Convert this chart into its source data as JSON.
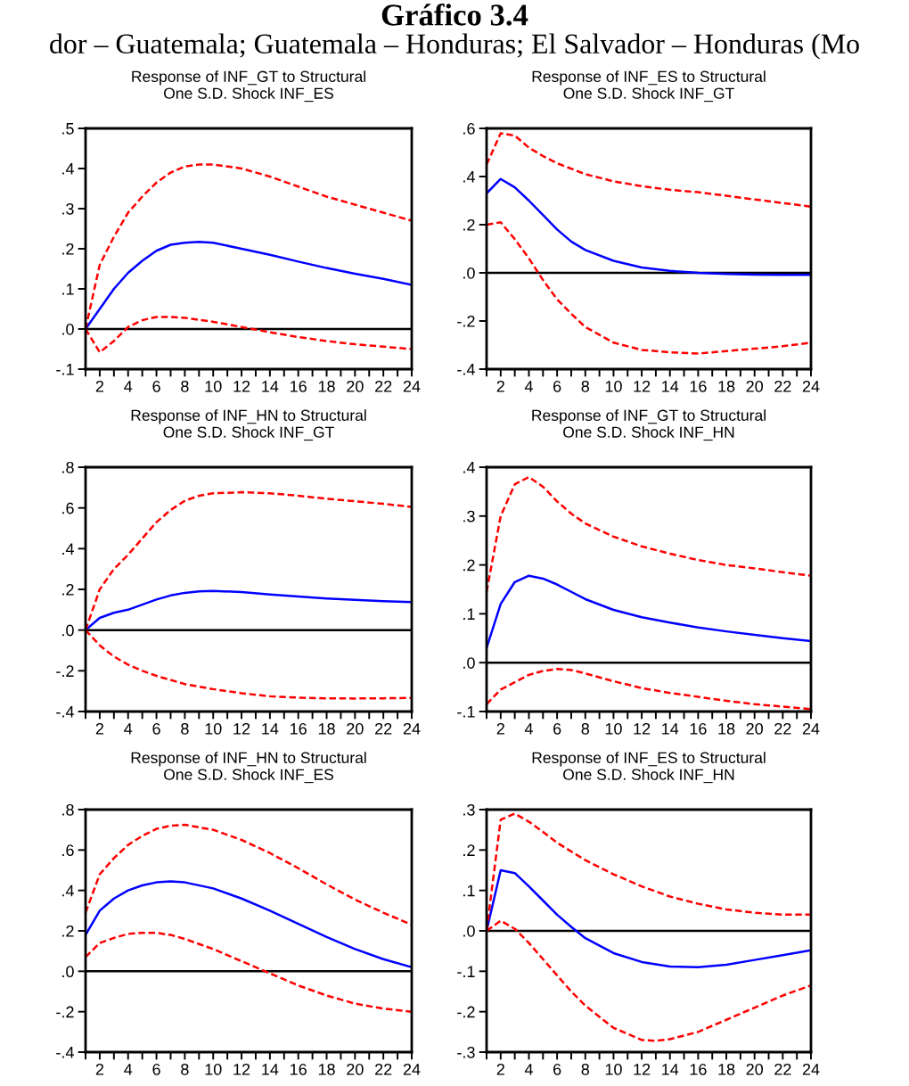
{
  "chart_data": [
    {
      "type": "line",
      "title": "Response of INF_GT to Structural\nOne S.D. Shock INF_ES",
      "annotations": [
        "Gráfico 3.4",
        "dor – Guatemala; Guatemala – Honduras; El Salvador – Honduras (Mo"
      ],
      "xlim": [
        1,
        24
      ],
      "xticks": [
        {
          "value": 1,
          "label": null
        },
        2,
        {
          "value": 3,
          "label": null
        },
        4,
        {
          "value": 5,
          "label": null
        },
        6,
        {
          "value": 7,
          "label": null
        },
        8,
        {
          "value": 9,
          "label": null
        },
        10,
        {
          "value": 11,
          "label": null
        },
        12,
        {
          "value": 13,
          "label": null
        },
        14,
        {
          "value": 15,
          "label": null
        },
        16,
        {
          "value": 17,
          "label": null
        },
        18,
        {
          "value": 19,
          "label": null
        },
        20,
        {
          "value": 21,
          "label": null
        },
        22,
        {
          "value": 23,
          "label": null
        },
        24
      ],
      "ylim": [
        -0.1,
        0.5
      ],
      "yticks": [
        {
          "value": -0.1,
          "label": "-.1"
        },
        {
          "value": 0,
          "label": ".0"
        },
        {
          "value": 0.1,
          "label": ".1"
        },
        {
          "value": 0.2,
          "label": ".2"
        },
        {
          "value": 0.3,
          "label": ".3"
        },
        {
          "value": 0.4,
          "label": ".4"
        },
        {
          "value": 0.5,
          "label": ".5"
        }
      ],
      "grid": false,
      "ref_lines": [
        {
          "axis": "y",
          "value": 0,
          "color": "#000000"
        }
      ],
      "series": [
        {
          "color": "#0000ff",
          "line_style": "solid",
          "x": [
            1,
            2,
            3,
            4,
            5,
            6,
            7,
            8,
            9,
            10,
            12,
            14,
            16,
            18,
            20,
            22,
            24
          ],
          "values": [
            0,
            0.05,
            0.1,
            0.14,
            0.17,
            0.195,
            0.21,
            0.215,
            0.217,
            0.215,
            0.2,
            0.185,
            0.168,
            0.152,
            0.138,
            0.125,
            0.11
          ]
        },
        {
          "color": "#ff0000",
          "line_style": "dashed",
          "x": [
            1,
            2,
            3,
            4,
            5,
            6,
            7,
            8,
            9,
            10,
            12,
            14,
            16,
            18,
            20,
            22,
            24
          ],
          "values": [
            0,
            0.16,
            0.23,
            0.29,
            0.33,
            0.365,
            0.39,
            0.405,
            0.41,
            0.41,
            0.4,
            0.38,
            0.355,
            0.33,
            0.31,
            0.29,
            0.27
          ]
        },
        {
          "color": "#ff0000",
          "line_style": "dashed",
          "x": [
            1,
            2,
            3,
            4,
            5,
            6,
            7,
            8,
            10,
            12,
            14,
            16,
            18,
            20,
            22,
            24
          ],
          "values": [
            0,
            -0.058,
            -0.03,
            0.005,
            0.022,
            0.03,
            0.03,
            0.028,
            0.018,
            0.005,
            -0.008,
            -0.02,
            -0.03,
            -0.038,
            -0.044,
            -0.05
          ]
        }
      ]
    },
    {
      "type": "line",
      "title": "Response of INF_ES to Structural\nOne S.D. Shock INF_GT",
      "xlim": [
        1,
        24
      ],
      "xticks": [
        {
          "value": 1,
          "label": null
        },
        2,
        {
          "value": 3,
          "label": null
        },
        4,
        {
          "value": 5,
          "label": null
        },
        6,
        {
          "value": 7,
          "label": null
        },
        8,
        {
          "value": 9,
          "label": null
        },
        10,
        {
          "value": 11,
          "label": null
        },
        12,
        {
          "value": 13,
          "label": null
        },
        14,
        {
          "value": 15,
          "label": null
        },
        16,
        {
          "value": 17,
          "label": null
        },
        18,
        {
          "value": 19,
          "label": null
        },
        20,
        {
          "value": 21,
          "label": null
        },
        22,
        {
          "value": 23,
          "label": null
        },
        24
      ],
      "ylim": [
        -0.4,
        0.6
      ],
      "yticks": [
        {
          "value": -0.4,
          "label": "-.4"
        },
        {
          "value": -0.2,
          "label": "-.2"
        },
        {
          "value": 0,
          "label": ".0"
        },
        {
          "value": 0.2,
          "label": ".2"
        },
        {
          "value": 0.4,
          "label": ".4"
        },
        {
          "value": 0.6,
          "label": ".6"
        }
      ],
      "grid": false,
      "ref_lines": [
        {
          "axis": "y",
          "value": 0,
          "color": "#000000"
        }
      ],
      "series": [
        {
          "color": "#0000ff",
          "line_style": "solid",
          "x": [
            1,
            2,
            3,
            4,
            5,
            6,
            7,
            8,
            10,
            12,
            14,
            16,
            18,
            20,
            22,
            24
          ],
          "values": [
            0.33,
            0.39,
            0.355,
            0.3,
            0.24,
            0.18,
            0.13,
            0.095,
            0.05,
            0.022,
            0.008,
            0,
            -0.005,
            -0.007,
            -0.008,
            -0.008
          ]
        },
        {
          "color": "#ff0000",
          "line_style": "dashed",
          "x": [
            1,
            2,
            3,
            4,
            5,
            6,
            8,
            10,
            12,
            14,
            16,
            18,
            20,
            22,
            24
          ],
          "values": [
            0.45,
            0.58,
            0.57,
            0.52,
            0.485,
            0.455,
            0.41,
            0.38,
            0.36,
            0.345,
            0.335,
            0.32,
            0.305,
            0.29,
            0.275
          ]
        },
        {
          "color": "#ff0000",
          "line_style": "dashed",
          "x": [
            1,
            2,
            3,
            4,
            5,
            6,
            7,
            8,
            10,
            12,
            14,
            16,
            18,
            20,
            22,
            24
          ],
          "values": [
            0.2,
            0.21,
            0.14,
            0.06,
            -0.03,
            -0.11,
            -0.17,
            -0.225,
            -0.29,
            -0.32,
            -0.33,
            -0.335,
            -0.325,
            -0.315,
            -0.305,
            -0.29
          ]
        }
      ]
    },
    {
      "type": "line",
      "title": "Response of INF_HN to Structural\nOne S.D. Shock INF_GT",
      "xlim": [
        1,
        24
      ],
      "xticks": [
        {
          "value": 1,
          "label": null
        },
        2,
        {
          "value": 3,
          "label": null
        },
        4,
        {
          "value": 5,
          "label": null
        },
        6,
        {
          "value": 7,
          "label": null
        },
        8,
        {
          "value": 9,
          "label": null
        },
        10,
        {
          "value": 11,
          "label": null
        },
        12,
        {
          "value": 13,
          "label": null
        },
        14,
        {
          "value": 15,
          "label": null
        },
        16,
        {
          "value": 17,
          "label": null
        },
        18,
        {
          "value": 19,
          "label": null
        },
        20,
        {
          "value": 21,
          "label": null
        },
        22,
        {
          "value": 23,
          "label": null
        },
        24
      ],
      "ylim": [
        -0.4,
        0.8
      ],
      "yticks": [
        {
          "value": -0.4,
          "label": "-.4"
        },
        {
          "value": -0.2,
          "label": "-.2"
        },
        {
          "value": 0,
          "label": ".0"
        },
        {
          "value": 0.2,
          "label": ".2"
        },
        {
          "value": 0.4,
          "label": ".4"
        },
        {
          "value": 0.6,
          "label": ".6"
        },
        {
          "value": 0.8,
          "label": ".8"
        }
      ],
      "grid": false,
      "ref_lines": [
        {
          "axis": "y",
          "value": 0,
          "color": "#000000"
        }
      ],
      "series": [
        {
          "color": "#0000ff",
          "line_style": "solid",
          "x": [
            1,
            2,
            3,
            4,
            5,
            6,
            7,
            8,
            9,
            10,
            12,
            14,
            16,
            18,
            20,
            22,
            24
          ],
          "values": [
            0,
            0.06,
            0.085,
            0.1,
            0.125,
            0.15,
            0.17,
            0.183,
            0.19,
            0.192,
            0.187,
            0.175,
            0.165,
            0.155,
            0.148,
            0.142,
            0.138
          ]
        },
        {
          "color": "#ff0000",
          "line_style": "dashed",
          "x": [
            1,
            2,
            3,
            4,
            5,
            6,
            7,
            8,
            9,
            10,
            12,
            14,
            16,
            18,
            20,
            22,
            24
          ],
          "values": [
            0,
            0.2,
            0.3,
            0.37,
            0.45,
            0.53,
            0.59,
            0.635,
            0.66,
            0.672,
            0.677,
            0.672,
            0.66,
            0.645,
            0.633,
            0.62,
            0.605
          ]
        },
        {
          "color": "#ff0000",
          "line_style": "dashed",
          "x": [
            1,
            2,
            3,
            4,
            5,
            6,
            8,
            10,
            12,
            14,
            16,
            18,
            20,
            22,
            24
          ],
          "values": [
            0,
            -0.075,
            -0.13,
            -0.17,
            -0.2,
            -0.225,
            -0.265,
            -0.29,
            -0.31,
            -0.325,
            -0.332,
            -0.335,
            -0.336,
            -0.335,
            -0.333
          ]
        }
      ]
    },
    {
      "type": "line",
      "title": "Response of INF_GT to Structural\nOne S.D. Shock INF_HN",
      "xlim": [
        1,
        24
      ],
      "xticks": [
        {
          "value": 1,
          "label": null
        },
        2,
        {
          "value": 3,
          "label": null
        },
        4,
        {
          "value": 5,
          "label": null
        },
        6,
        {
          "value": 7,
          "label": null
        },
        8,
        {
          "value": 9,
          "label": null
        },
        10,
        {
          "value": 11,
          "label": null
        },
        12,
        {
          "value": 13,
          "label": null
        },
        14,
        {
          "value": 15,
          "label": null
        },
        16,
        {
          "value": 17,
          "label": null
        },
        18,
        {
          "value": 19,
          "label": null
        },
        20,
        {
          "value": 21,
          "label": null
        },
        22,
        {
          "value": 23,
          "label": null
        },
        24
      ],
      "ylim": [
        -0.1,
        0.4
      ],
      "yticks": [
        {
          "value": -0.1,
          "label": "-.1"
        },
        {
          "value": 0,
          "label": ".0"
        },
        {
          "value": 0.1,
          "label": ".1"
        },
        {
          "value": 0.2,
          "label": ".2"
        },
        {
          "value": 0.3,
          "label": ".3"
        },
        {
          "value": 0.4,
          "label": ".4"
        }
      ],
      "grid": false,
      "ref_lines": [
        {
          "axis": "y",
          "value": 0,
          "color": "#000000"
        }
      ],
      "series": [
        {
          "color": "#0000ff",
          "line_style": "solid",
          "x": [
            1,
            2,
            3,
            4,
            5,
            6,
            7,
            8,
            10,
            12,
            14,
            16,
            18,
            20,
            22,
            24
          ],
          "values": [
            0.03,
            0.12,
            0.165,
            0.178,
            0.172,
            0.16,
            0.145,
            0.13,
            0.108,
            0.093,
            0.082,
            0.072,
            0.064,
            0.057,
            0.05,
            0.044
          ]
        },
        {
          "color": "#ff0000",
          "line_style": "dashed",
          "x": [
            1,
            2,
            3,
            4,
            5,
            6,
            7,
            8,
            10,
            12,
            14,
            16,
            18,
            20,
            22,
            24
          ],
          "values": [
            0.145,
            0.3,
            0.365,
            0.38,
            0.36,
            0.33,
            0.305,
            0.285,
            0.258,
            0.238,
            0.223,
            0.21,
            0.2,
            0.193,
            0.185,
            0.178
          ]
        },
        {
          "color": "#ff0000",
          "line_style": "dashed",
          "x": [
            1,
            2,
            3,
            4,
            5,
            6,
            7,
            8,
            10,
            12,
            14,
            16,
            18,
            20,
            22,
            24
          ],
          "values": [
            -0.085,
            -0.055,
            -0.04,
            -0.025,
            -0.017,
            -0.013,
            -0.015,
            -0.022,
            -0.038,
            -0.052,
            -0.062,
            -0.07,
            -0.078,
            -0.085,
            -0.09,
            -0.095
          ]
        }
      ]
    },
    {
      "type": "line",
      "title": "Response of INF_HN to Structural\nOne S.D. Shock INF_ES",
      "xlim": [
        1,
        24
      ],
      "xticks": [
        {
          "value": 1,
          "label": null
        },
        2,
        {
          "value": 3,
          "label": null
        },
        4,
        {
          "value": 5,
          "label": null
        },
        6,
        {
          "value": 7,
          "label": null
        },
        8,
        {
          "value": 9,
          "label": null
        },
        10,
        {
          "value": 11,
          "label": null
        },
        12,
        {
          "value": 13,
          "label": null
        },
        14,
        {
          "value": 15,
          "label": null
        },
        16,
        {
          "value": 17,
          "label": null
        },
        18,
        {
          "value": 19,
          "label": null
        },
        20,
        {
          "value": 21,
          "label": null
        },
        22,
        {
          "value": 23,
          "label": null
        },
        24
      ],
      "ylim": [
        -0.4,
        0.8
      ],
      "yticks": [
        {
          "value": -0.4,
          "label": "-.4"
        },
        {
          "value": -0.2,
          "label": "-.2"
        },
        {
          "value": 0,
          "label": ".0"
        },
        {
          "value": 0.2,
          "label": ".2"
        },
        {
          "value": 0.4,
          "label": ".4"
        },
        {
          "value": 0.6,
          "label": ".6"
        },
        {
          "value": 0.8,
          "label": ".8"
        }
      ],
      "grid": false,
      "ref_lines": [
        {
          "axis": "y",
          "value": 0,
          "color": "#000000"
        }
      ],
      "series": [
        {
          "color": "#0000ff",
          "line_style": "solid",
          "x": [
            1,
            2,
            3,
            4,
            5,
            6,
            7,
            8,
            10,
            12,
            14,
            16,
            18,
            20,
            22,
            24
          ],
          "values": [
            0.18,
            0.3,
            0.36,
            0.4,
            0.425,
            0.44,
            0.445,
            0.44,
            0.41,
            0.36,
            0.3,
            0.235,
            0.17,
            0.11,
            0.06,
            0.02
          ]
        },
        {
          "color": "#ff0000",
          "line_style": "dashed",
          "x": [
            1,
            2,
            3,
            4,
            5,
            6,
            7,
            8,
            10,
            12,
            14,
            16,
            18,
            20,
            22,
            24
          ],
          "values": [
            0.29,
            0.48,
            0.56,
            0.625,
            0.67,
            0.705,
            0.72,
            0.725,
            0.7,
            0.65,
            0.585,
            0.51,
            0.43,
            0.355,
            0.29,
            0.23
          ]
        },
        {
          "color": "#ff0000",
          "line_style": "dashed",
          "x": [
            1,
            2,
            3,
            4,
            5,
            6,
            7,
            8,
            10,
            12,
            14,
            16,
            18,
            20,
            22,
            24
          ],
          "values": [
            0.07,
            0.14,
            0.165,
            0.185,
            0.19,
            0.19,
            0.18,
            0.16,
            0.11,
            0.05,
            -0.01,
            -0.07,
            -0.12,
            -0.16,
            -0.185,
            -0.2
          ]
        }
      ]
    },
    {
      "type": "line",
      "title": "Response of INF_ES to Structural\nOne S.D. Shock INF_HN",
      "xlim": [
        1,
        24
      ],
      "xticks": [
        {
          "value": 1,
          "label": null
        },
        2,
        {
          "value": 3,
          "label": null
        },
        4,
        {
          "value": 5,
          "label": null
        },
        6,
        {
          "value": 7,
          "label": null
        },
        8,
        {
          "value": 9,
          "label": null
        },
        10,
        {
          "value": 11,
          "label": null
        },
        12,
        {
          "value": 13,
          "label": null
        },
        14,
        {
          "value": 15,
          "label": null
        },
        16,
        {
          "value": 17,
          "label": null
        },
        18,
        {
          "value": 19,
          "label": null
        },
        20,
        {
          "value": 21,
          "label": null
        },
        22,
        {
          "value": 23,
          "label": null
        },
        24
      ],
      "ylim": [
        -0.3,
        0.3
      ],
      "yticks": [
        {
          "value": -0.3,
          "label": "-.3"
        },
        {
          "value": -0.2,
          "label": "-.2"
        },
        {
          "value": -0.1,
          "label": "-.1"
        },
        {
          "value": 0,
          "label": ".0"
        },
        {
          "value": 0.1,
          "label": ".1"
        },
        {
          "value": 0.2,
          "label": ".2"
        },
        {
          "value": 0.3,
          "label": ".3"
        }
      ],
      "grid": false,
      "ref_lines": [
        {
          "axis": "y",
          "value": 0,
          "color": "#000000"
        }
      ],
      "series": [
        {
          "color": "#0000ff",
          "line_style": "solid",
          "x": [
            1,
            2,
            3,
            4,
            5,
            6,
            7,
            8,
            10,
            12,
            14,
            16,
            18,
            20,
            22,
            24
          ],
          "values": [
            0,
            0.15,
            0.143,
            0.11,
            0.075,
            0.04,
            0.01,
            -0.018,
            -0.055,
            -0.077,
            -0.088,
            -0.09,
            -0.084,
            -0.072,
            -0.06,
            -0.048
          ]
        },
        {
          "color": "#ff0000",
          "line_style": "dashed",
          "x": [
            1,
            2,
            3,
            4,
            5,
            6,
            8,
            10,
            12,
            14,
            16,
            18,
            20,
            22,
            24
          ],
          "values": [
            0,
            0.275,
            0.29,
            0.27,
            0.245,
            0.218,
            0.175,
            0.14,
            0.11,
            0.085,
            0.067,
            0.053,
            0.045,
            0.04,
            0.04
          ]
        },
        {
          "color": "#ff0000",
          "line_style": "dashed",
          "x": [
            1,
            2,
            3,
            4,
            5,
            6,
            7,
            8,
            10,
            12,
            13,
            14,
            16,
            18,
            20,
            22,
            24
          ],
          "values": [
            0,
            0.025,
            0.005,
            -0.03,
            -0.07,
            -0.11,
            -0.15,
            -0.185,
            -0.24,
            -0.27,
            -0.272,
            -0.268,
            -0.25,
            -0.22,
            -0.19,
            -0.16,
            -0.135
          ]
        }
      ]
    }
  ]
}
